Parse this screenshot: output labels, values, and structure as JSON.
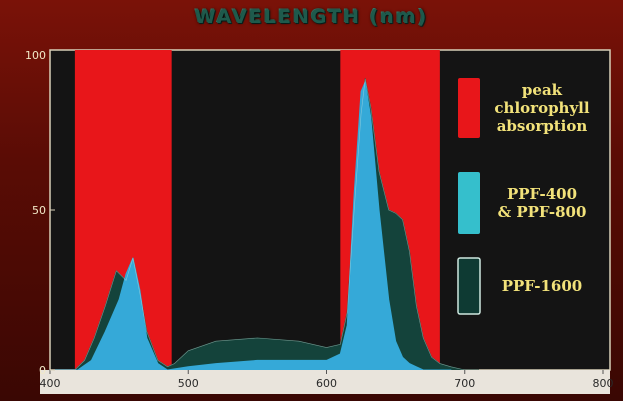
{
  "chart_data": {
    "type": "area",
    "title": "WAVELENGTH (nm)",
    "xlim": [
      400,
      800
    ],
    "ylim": [
      0,
      100
    ],
    "xticks": [
      "400",
      "500",
      "600",
      "700",
      "800"
    ],
    "yticks": [
      "0",
      "50",
      "100"
    ],
    "bands": [
      {
        "x0": 418,
        "x1": 488,
        "color": "#e8161a"
      },
      {
        "x0": 610,
        "x1": 682,
        "color": "#e8161a"
      }
    ],
    "series": [
      {
        "color": "#14433b",
        "x": [
          400,
          418,
          425,
          432,
          440,
          448,
          455,
          460,
          465,
          470,
          478,
          485,
          490,
          500,
          520,
          550,
          580,
          600,
          610,
          615,
          620,
          625,
          628,
          632,
          638,
          645,
          650,
          655,
          660,
          665,
          670,
          676,
          682,
          690,
          700,
          710
        ],
        "y": [
          0,
          0,
          3,
          10,
          20,
          31,
          28,
          35,
          24,
          12,
          3,
          1,
          2,
          6,
          9,
          10,
          9,
          7,
          8,
          18,
          50,
          80,
          91,
          82,
          62,
          50,
          49,
          47,
          37,
          20,
          10,
          4,
          2,
          1,
          0,
          0
        ]
      },
      {
        "color": "#35a9d8",
        "x": [
          400,
          420,
          430,
          440,
          450,
          455,
          460,
          465,
          470,
          478,
          485,
          500,
          520,
          550,
          580,
          600,
          610,
          615,
          620,
          625,
          628,
          632,
          638,
          645,
          650,
          655,
          660,
          665,
          670,
          676,
          682,
          690
        ],
        "y": [
          0,
          0,
          3,
          12,
          22,
          30,
          35,
          25,
          10,
          2,
          0,
          1,
          2,
          3,
          3,
          3,
          5,
          14,
          55,
          87,
          90,
          79,
          50,
          22,
          9,
          4,
          2,
          1,
          0,
          0,
          0,
          0
        ]
      }
    ],
    "legend": [
      {
        "lines": [
          "peak",
          "chlorophyll",
          "absorption"
        ],
        "color": "#e8161a"
      },
      {
        "lines": [
          "PPF-400",
          "& PPF-800"
        ],
        "color": "#35bfcc"
      },
      {
        "lines": [
          "PPF-1600"
        ],
        "color": "#0e3a33"
      }
    ]
  }
}
